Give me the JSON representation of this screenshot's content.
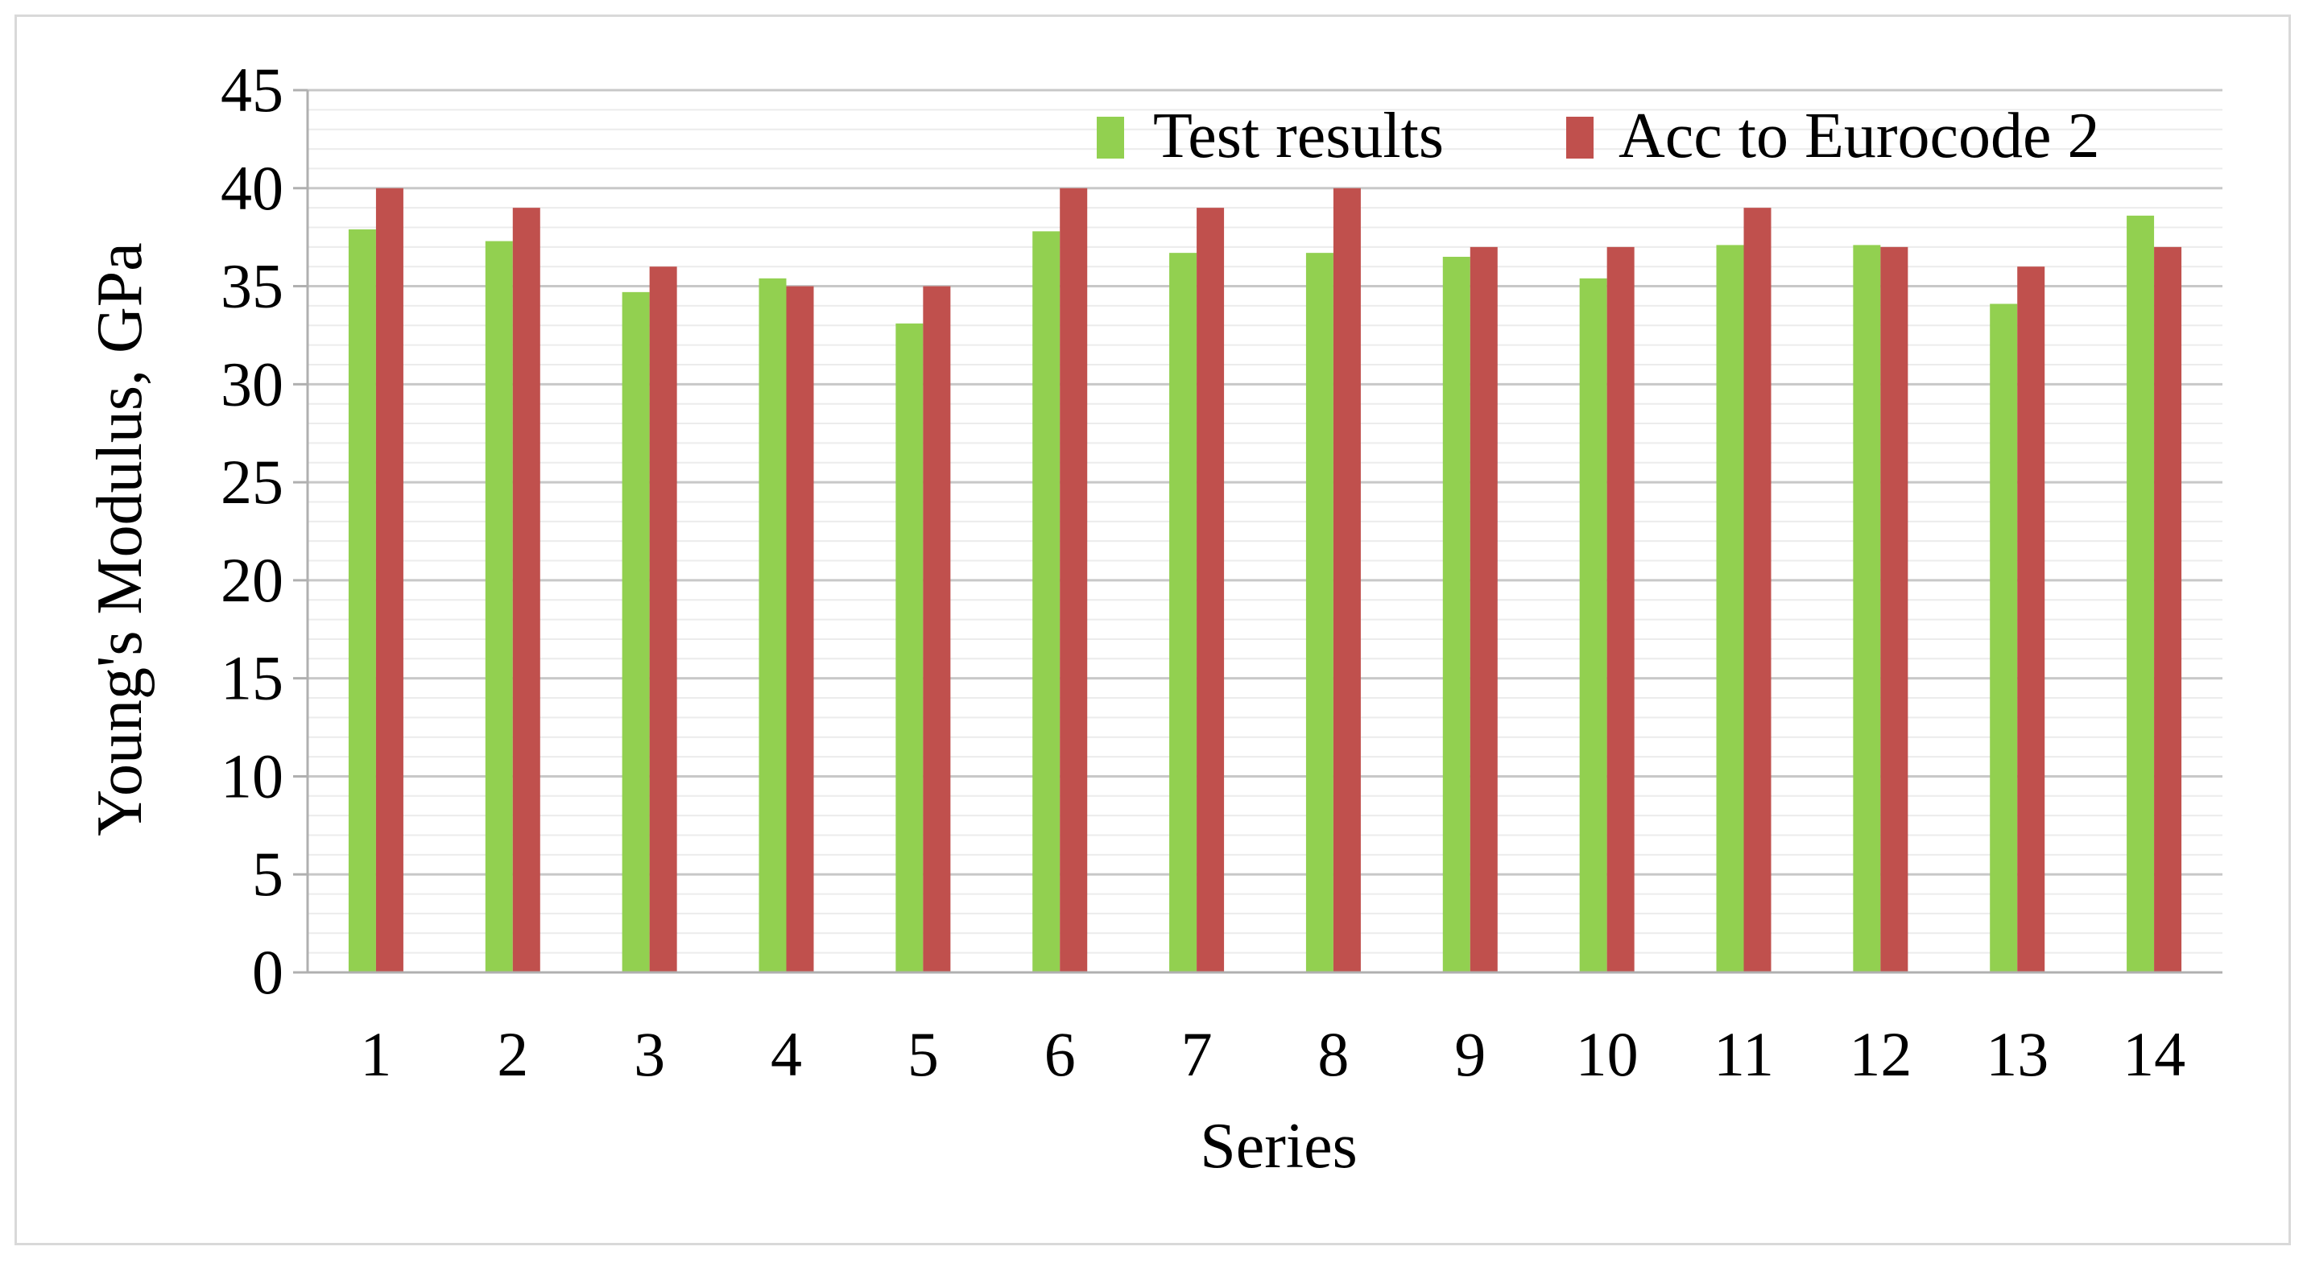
{
  "chart_data": {
    "type": "bar",
    "title": "",
    "xlabel": "Series",
    "ylabel": "Young's Modulus, GPa",
    "ylim": [
      0,
      45
    ],
    "yticks": [
      0,
      5,
      10,
      15,
      20,
      25,
      30,
      35,
      40,
      45
    ],
    "grid": true,
    "legend_position": "top-right",
    "categories": [
      "1",
      "2",
      "3",
      "4",
      "5",
      "6",
      "7",
      "8",
      "9",
      "10",
      "11",
      "12",
      "13",
      "14"
    ],
    "series": [
      {
        "name": "Test results",
        "color": "#92d050",
        "values": [
          37.9,
          37.3,
          34.7,
          35.4,
          33.1,
          37.8,
          36.7,
          36.7,
          36.5,
          35.4,
          37.1,
          37.1,
          34.1,
          38.6
        ]
      },
      {
        "name": "Acc to Eurocode 2",
        "color": "#c0504d",
        "values": [
          40,
          39,
          36,
          35,
          35,
          40,
          39,
          40,
          37,
          37,
          39,
          37,
          36,
          37
        ]
      }
    ]
  }
}
